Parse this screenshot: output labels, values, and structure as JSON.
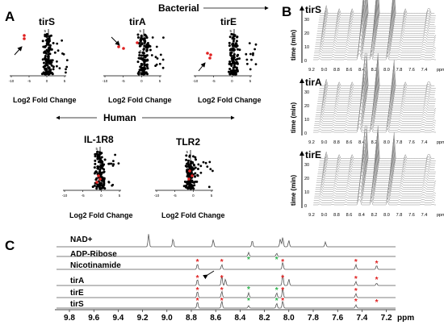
{
  "panels": {
    "A": {
      "letter": "A",
      "bacterial_label": "Bacterial",
      "human_label": "Human",
      "xlabel": "Log2 Fold Change",
      "plots": [
        {
          "name": "tirS",
          "xticks": [
            "-10",
            "-5",
            "0",
            "5"
          ],
          "yticks": [
            "0",
            "3",
            "5"
          ]
        },
        {
          "name": "tirA",
          "xticks": [
            "-10",
            "-5",
            "0",
            "5"
          ],
          "yticks": [
            "0",
            "3",
            "5"
          ]
        },
        {
          "name": "tirE",
          "xticks": [
            "-10",
            "-5",
            "0",
            "5"
          ],
          "yticks": [
            "0",
            "3",
            "5"
          ]
        },
        {
          "name": "IL-1R8",
          "xticks": [
            "-10",
            "-5",
            "0",
            "5"
          ],
          "yticks": [
            "0",
            "3",
            "5"
          ]
        },
        {
          "name": "TLR2",
          "xticks": [
            "-10",
            "-5",
            "0",
            "5"
          ],
          "yticks": [
            "0",
            "3",
            "5"
          ]
        }
      ]
    },
    "B": {
      "letter": "B",
      "ylabel": "time (min)",
      "unit": "ppm",
      "yticks": [
        "0",
        "10",
        "20",
        "30"
      ],
      "xticks": [
        "9.2",
        "9.0",
        "8.8",
        "8.6",
        "8.4",
        "8.2",
        "8.0",
        "7.8",
        "7.6",
        "7.4"
      ],
      "plots": [
        {
          "name": "tirS"
        },
        {
          "name": "tirA"
        },
        {
          "name": "tirE"
        }
      ]
    },
    "C": {
      "letter": "C",
      "unit": "ppm",
      "xticks": [
        "9.8",
        "9.6",
        "9.4",
        "9.2",
        "9.0",
        "8.8",
        "8.6",
        "8.4",
        "8.2",
        "8.0",
        "7.8",
        "7.6",
        "7.4",
        "7.2"
      ],
      "traces": [
        "NAD+",
        "ADP-Ribose",
        "Nicotinamide",
        "tirA",
        "tirE",
        "tirS"
      ]
    }
  },
  "colors": {
    "accent_red": "#e02020",
    "accent_green": "#2bb24c",
    "trace": "#555555"
  }
}
